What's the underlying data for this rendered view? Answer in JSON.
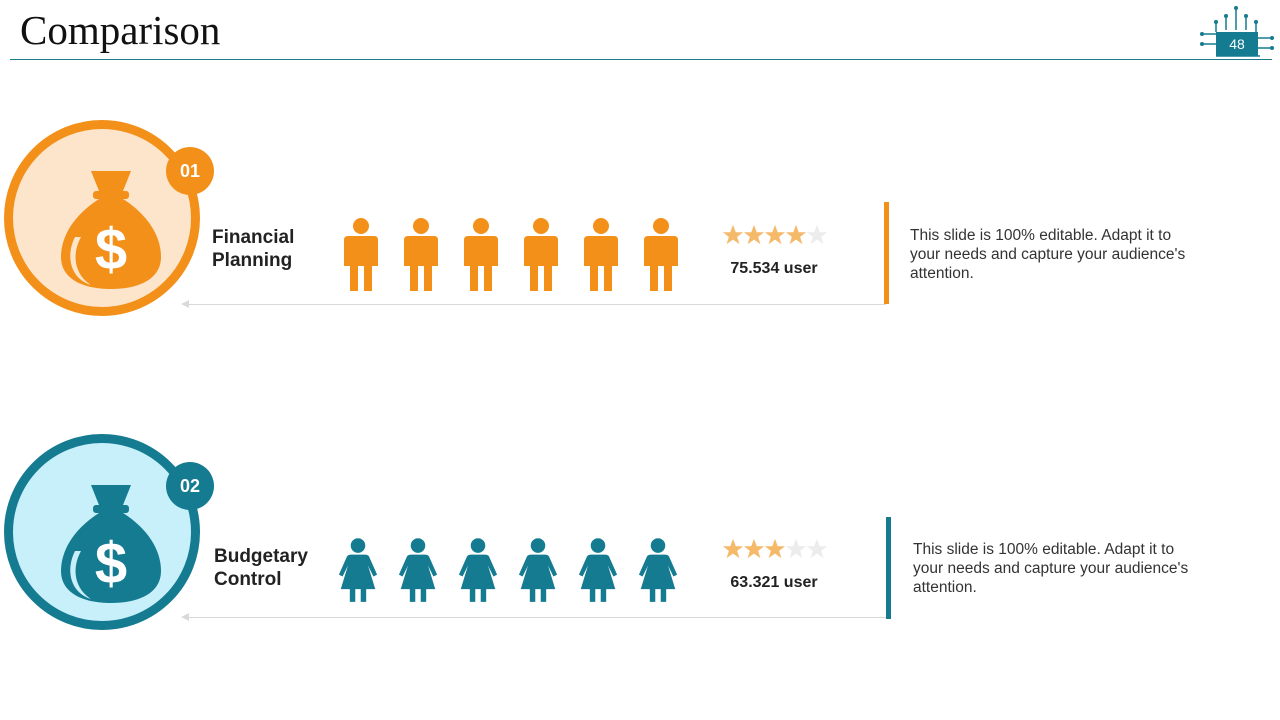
{
  "slide": {
    "title": "Comparison",
    "page_number": "48",
    "accent_color": "#147b91"
  },
  "items": [
    {
      "badge": "01",
      "label_line1": "Financial",
      "label_line2": "Planning",
      "icon": "money-bag-icon",
      "person_icon": "male-person-icon",
      "person_count": 6,
      "rating": 4,
      "rating_max": 5,
      "users": "75.534 user",
      "description": "This slide is 100% editable. Adapt it to your needs and capture your audience's attention.",
      "color": "#f39019",
      "light_color": "#fde5cb"
    },
    {
      "badge": "02",
      "label_line1": "Budgetary",
      "label_line2": "Control",
      "icon": "money-bag-icon",
      "person_icon": "female-person-icon",
      "person_count": 6,
      "rating": 3,
      "rating_max": 5,
      "users": "63.321 user",
      "description": "This slide is 100% editable. Adapt it to your needs and capture your audience's attention.",
      "color": "#147b91",
      "light_color": "#c8f0fb"
    }
  ]
}
